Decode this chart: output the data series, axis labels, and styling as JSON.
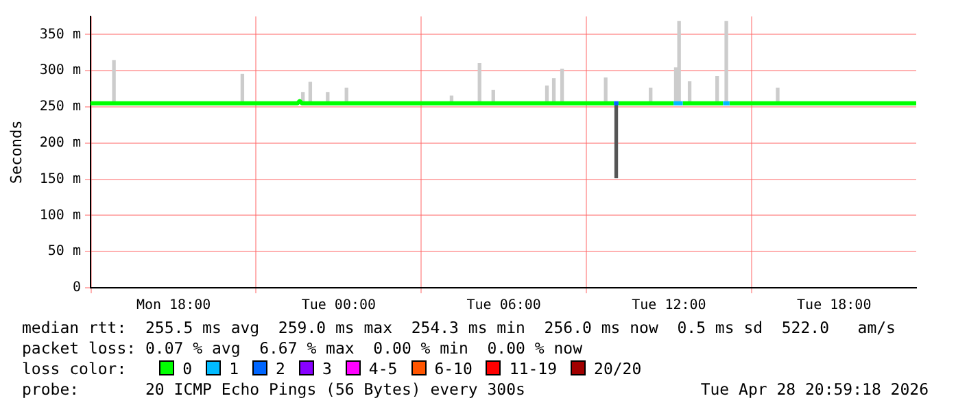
{
  "chart_data": {
    "type": "line",
    "ylabel": "Seconds",
    "legend_title": "loss color:",
    "legend": "bottom",
    "grid": true,
    "line_style": "solid",
    "marker": "none",
    "xlim": [
      "2026-04-27T14:59",
      "2026-04-28T20:59"
    ],
    "xticks": [
      {
        "value": "2026-04-27T18:00",
        "label": "Mon 18:00"
      },
      {
        "value": "2026-04-28T00:00",
        "label": "Tue 00:00"
      },
      {
        "value": "2026-04-28T06:00",
        "label": "Tue 06:00"
      },
      {
        "value": "2026-04-28T12:00",
        "label": "Tue 12:00"
      },
      {
        "value": "2026-04-28T18:00",
        "label": "Tue 18:00"
      }
    ],
    "ylim": [
      0,
      375
    ],
    "yticks": [
      {
        "value": 0,
        "label": "0"
      },
      {
        "value": 50,
        "label": "50 m"
      },
      {
        "value": 100,
        "label": "100 m"
      },
      {
        "value": 150,
        "label": "150 m"
      },
      {
        "value": 200,
        "label": "200 m"
      },
      {
        "value": 250,
        "label": "250 m"
      },
      {
        "value": 300,
        "label": "300 m"
      },
      {
        "value": 350,
        "label": "350 m"
      }
    ],
    "annotations": [
      "median rtt:  255.5 ms avg  259.0 ms max  254.3 ms min  256.0 ms now  0.5 ms sd  522.0   am/s",
      "packet loss: 0.07 % avg  6.67 % max  0.00 % min  0.00 % now",
      "probe:       20 ICMP Echo Pings (56 Bytes) every 300s",
      "Tue Apr 28 20:59:18 2026"
    ],
    "series": [
      {
        "type": "bar",
        "colors": [
          "#cccccc",
          "#cccccc",
          "#cccccc",
          "#cccccc",
          "#cccccc",
          "#cccccc",
          "#cccccc",
          "#cccccc",
          "#cccccc",
          "#cccccc",
          "#cccccc",
          "#cccccc",
          "#cccccc",
          "#555555",
          "#cccccc",
          "#cccccc",
          "#cccccc",
          "#cccccc",
          "#cccccc",
          "#cccccc",
          "#cccccc"
        ],
        "x": [
          "2026-04-27T15:50",
          "2026-04-27T20:30",
          "2026-04-27T22:42",
          "2026-04-27T22:58",
          "2026-04-27T23:36",
          "2026-04-28T00:17",
          "2026-04-28T04:06",
          "2026-04-28T05:07",
          "2026-04-28T05:37",
          "2026-04-28T07:34",
          "2026-04-28T07:49",
          "2026-04-28T08:07",
          "2026-04-28T09:42",
          "2026-04-28T10:05",
          "2026-04-28T11:20",
          "2026-04-28T12:15",
          "2026-04-28T12:22",
          "2026-04-28T12:45",
          "2026-04-28T13:45",
          "2026-04-28T14:05",
          "2026-04-28T15:57"
        ],
        "base": [
          255,
          255,
          255,
          255,
          255,
          255,
          255,
          255,
          255,
          255,
          255,
          255,
          255,
          152,
          255,
          255,
          255,
          255,
          255,
          255,
          255
        ],
        "values": [
          59,
          40,
          15,
          29,
          15,
          21,
          10,
          55,
          18,
          24,
          34,
          47,
          35,
          103,
          21,
          49,
          113,
          30,
          37,
          113,
          21
        ]
      },
      {
        "name": "0",
        "color": "#00ff00",
        "x": [
          "2026-04-27T14:59",
          "2026-04-27T22:30",
          "2026-04-27T22:35",
          "2026-04-27T22:40",
          "2026-04-28T10:00",
          "2026-04-28T10:05",
          "2026-04-28T10:10",
          "2026-04-28T12:10",
          "2026-04-28T12:20",
          "2026-04-28T12:30",
          "2026-04-28T13:58",
          "2026-04-28T14:05",
          "2026-04-28T14:12",
          "2026-04-28T20:59"
        ],
        "values": [
          255,
          255,
          258,
          255,
          255,
          null,
          255,
          255,
          null,
          255,
          255,
          null,
          255,
          255
        ]
      },
      {
        "name": "1",
        "color": "#00bbff",
        "x": [
          "2026-04-28T12:10",
          "2026-04-28T12:30",
          "2026-04-28T13:00",
          "2026-04-28T13:58",
          "2026-04-28T14:12"
        ],
        "values": [
          255,
          255,
          null,
          255,
          255
        ]
      },
      {
        "name": "2",
        "color": "#0066ff",
        "x": [
          "2026-04-28T10:00",
          "2026-04-28T10:10"
        ],
        "values": [
          255,
          255
        ]
      },
      {
        "name": "3",
        "color": "#8800ff"
      },
      {
        "name": "4-5",
        "color": "#ff00ff"
      },
      {
        "name": "6-10",
        "color": "#ff5500"
      },
      {
        "name": "11-19",
        "color": "#ff0000"
      },
      {
        "name": "20/20",
        "color": "#a10000"
      }
    ]
  }
}
